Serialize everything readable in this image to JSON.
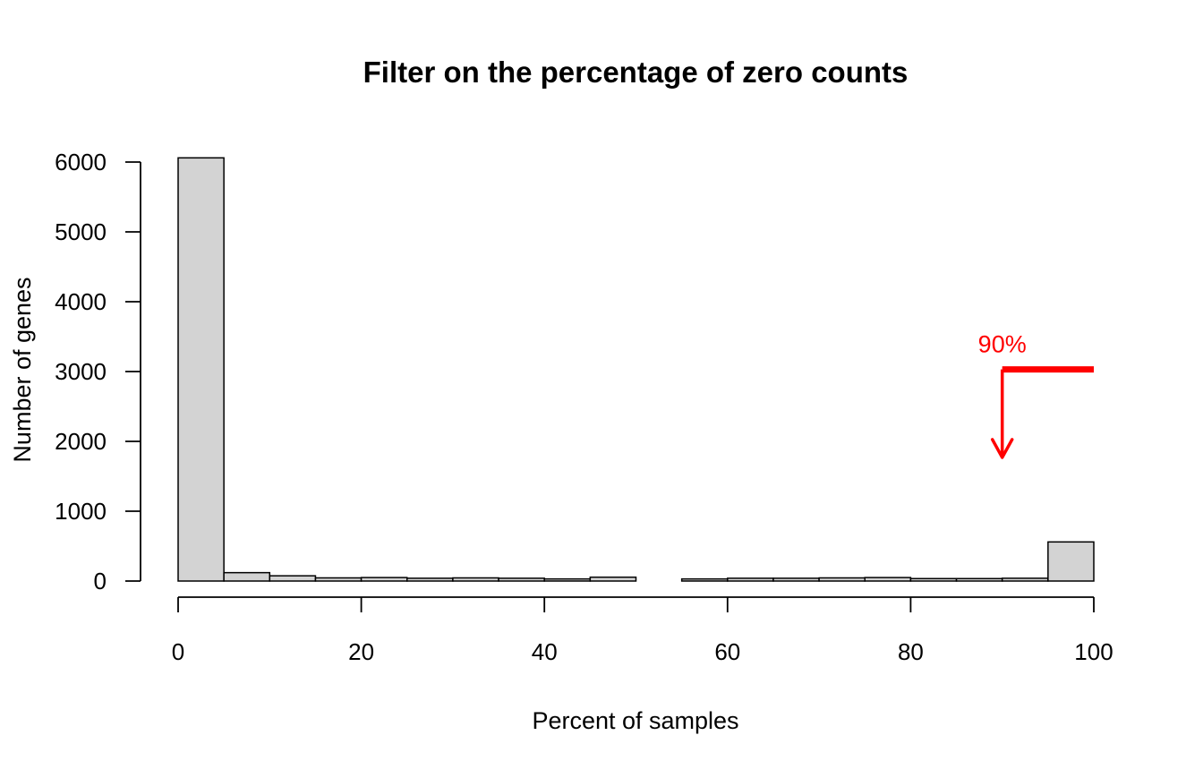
{
  "chart_data": {
    "type": "bar",
    "title": "Filter on the percentage of zero counts",
    "xlabel": "Percent of samples",
    "ylabel": "Number of genes",
    "xlim": [
      0,
      100
    ],
    "ylim": [
      0,
      6000
    ],
    "x_ticks": [
      "0",
      "20",
      "40",
      "60",
      "80",
      "100"
    ],
    "y_ticks": [
      "0",
      "1000",
      "2000",
      "3000",
      "4000",
      "5000",
      "6000"
    ],
    "bin_width": 5,
    "bins": [
      {
        "start": 0,
        "end": 5,
        "count": 6060
      },
      {
        "start": 5,
        "end": 10,
        "count": 120
      },
      {
        "start": 10,
        "end": 15,
        "count": 75
      },
      {
        "start": 15,
        "end": 20,
        "count": 45
      },
      {
        "start": 20,
        "end": 25,
        "count": 50
      },
      {
        "start": 25,
        "end": 30,
        "count": 40
      },
      {
        "start": 30,
        "end": 35,
        "count": 45
      },
      {
        "start": 35,
        "end": 40,
        "count": 40
      },
      {
        "start": 40,
        "end": 45,
        "count": 30
      },
      {
        "start": 45,
        "end": 50,
        "count": 55
      },
      {
        "start": 50,
        "end": 55,
        "count": 0
      },
      {
        "start": 55,
        "end": 60,
        "count": 30
      },
      {
        "start": 60,
        "end": 65,
        "count": 40
      },
      {
        "start": 65,
        "end": 70,
        "count": 40
      },
      {
        "start": 70,
        "end": 75,
        "count": 45
      },
      {
        "start": 75,
        "end": 80,
        "count": 50
      },
      {
        "start": 80,
        "end": 85,
        "count": 35
      },
      {
        "start": 85,
        "end": 90,
        "count": 35
      },
      {
        "start": 90,
        "end": 95,
        "count": 40
      },
      {
        "start": 95,
        "end": 100,
        "count": 560
      }
    ],
    "bar_fill": "#d3d3d3",
    "bar_stroke": "#000000",
    "grid": false,
    "annotation": {
      "label": "90%",
      "color": "#ff0000",
      "threshold_x": 90,
      "line_y": 3030,
      "line_x_end": 100,
      "arrow_to_y": 1770
    }
  }
}
